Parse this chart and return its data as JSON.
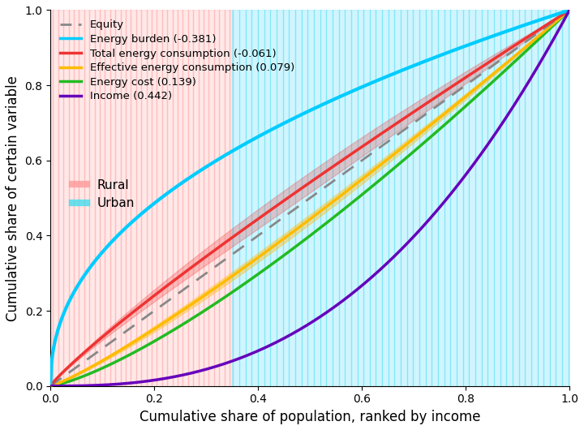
{
  "xlabel": "Cumulative share of population, ranked by income",
  "ylabel": "Cumulative share of certain variable",
  "equity_color": "#888888",
  "energy_burden_color": "#00CCFF",
  "total_energy_color": "#EE3333",
  "effective_energy_color": "#FFBB00",
  "energy_cost_color": "#22BB22",
  "income_color": "#6600BB",
  "rural_color": "#FF9999",
  "rural_fill_color": "#FFCCCC",
  "urban_color": "#44DDEE",
  "urban_fill_color": "#AAEEFF",
  "gini_energy_burden": -0.381,
  "gini_total_energy": -0.061,
  "gini_effective_energy": 0.079,
  "gini_energy_cost": 0.139,
  "gini_income": 0.442,
  "legend_labels": [
    "Equity",
    "Energy burden (-0.381)",
    "Total energy consumption (-0.061)",
    "Effective energy consumption (0.079)",
    "Energy cost (0.139)",
    "Income (0.442)"
  ],
  "legend2_labels": [
    "Rural",
    "Urban"
  ],
  "n_points": 500,
  "rural_urban_split": 0.35,
  "background_color": "#ffffff",
  "font_size": 12,
  "band_alpha": 0.25,
  "band_scale": 0.018,
  "rural_stripe_n": 35,
  "urban_stripe_n": 55,
  "stripe_alpha": 0.55,
  "stripe_lw": 1.0
}
